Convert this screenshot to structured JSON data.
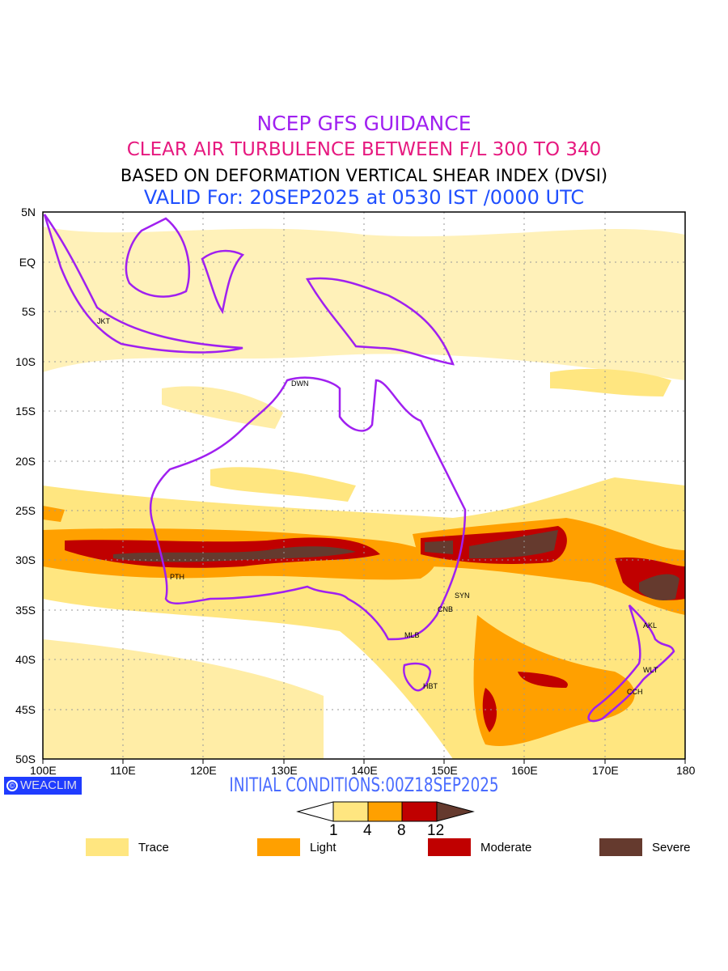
{
  "titles": {
    "line1": "NCEP GFS GUIDANCE",
    "line2": "CLEAR AIR TURBULENCE BETWEEN F/L 300 TO 340",
    "line3": "BASED ON DEFORMATION VERTICAL SHEAR INDEX (DVSI)",
    "line4": "VALID For: 20SEP2025 at 0530 IST /0000 UTC"
  },
  "axes": {
    "lon_labels": [
      "100E",
      "110E",
      "120E",
      "130E",
      "140E",
      "150E",
      "160E",
      "170E",
      "180"
    ],
    "lat_labels": [
      "5N",
      "EQ",
      "5S",
      "10S",
      "15S",
      "20S",
      "25S",
      "30S",
      "35S",
      "40S",
      "45S",
      "50S"
    ]
  },
  "cities": [
    {
      "code": "JKT"
    },
    {
      "code": "DWN"
    },
    {
      "code": "PTH"
    },
    {
      "code": "SYN"
    },
    {
      "code": "CNB"
    },
    {
      "code": "MLB"
    },
    {
      "code": "HBT"
    },
    {
      "code": "AKL"
    },
    {
      "code": "WLT"
    },
    {
      "code": "CCH"
    }
  ],
  "footer": {
    "logo": "WEACLIM",
    "initial_conditions": "INITIAL CONDITIONS:00Z18SEP2025"
  },
  "colorbar": {
    "ticks": [
      "1",
      "4",
      "8",
      "12"
    ],
    "colors": [
      "#ffffff",
      "#ffe680",
      "#ffa000",
      "#c00000",
      "#653a2e"
    ]
  },
  "legend": [
    {
      "label": "Trace",
      "color": "#ffe680"
    },
    {
      "label": "Light",
      "color": "#ffa000"
    },
    {
      "label": "Moderate",
      "color": "#c00000"
    },
    {
      "label": "Severe",
      "color": "#653a2e"
    }
  ],
  "colors": {
    "coast": "#a020f0",
    "grid": "#999999"
  }
}
